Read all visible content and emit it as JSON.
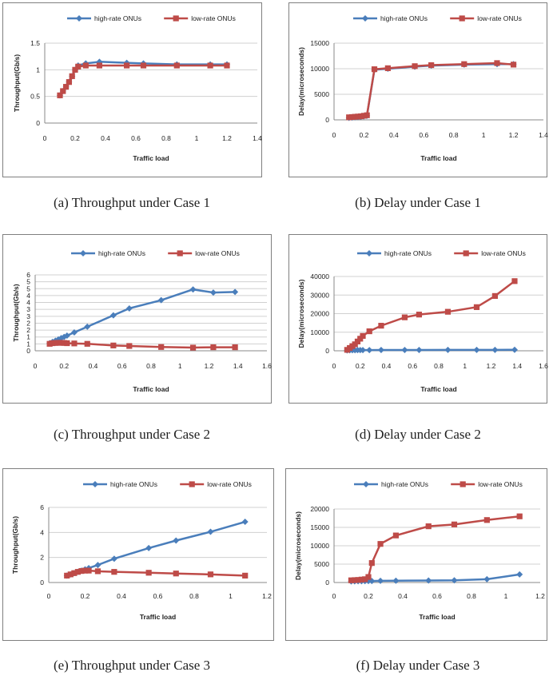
{
  "legend": {
    "series_a": "high-rate ONUs",
    "series_b": "low-rate ONUs"
  },
  "colors": {
    "series_a": "#4a7ebb",
    "series_b": "#be4b48",
    "grid": "#d0d0d0",
    "axis": "#888888"
  },
  "chart_data": [
    {
      "type": "line",
      "caption": "(a) Throughput under Case 1",
      "xlabel": "Traffic load",
      "ylabel": "Throughput(Gb/s)",
      "xlim": [
        0,
        1.4
      ],
      "xticks": [
        "0",
        "0.2",
        "0.4",
        "0.6",
        "0.8",
        "1",
        "1.2",
        "1.4"
      ],
      "ylim": [
        0,
        1.5
      ],
      "yticks": [
        "0",
        "0.5",
        "1",
        "1.5"
      ],
      "series": [
        {
          "name": "high-rate ONUs",
          "marker": "diamond",
          "x": [
            0.1,
            0.12,
            0.14,
            0.16,
            0.18,
            0.2,
            0.22,
            0.27,
            0.36,
            0.54,
            0.65,
            0.87,
            1.09,
            1.2
          ],
          "y": [
            0.52,
            0.6,
            0.68,
            0.77,
            0.88,
            1.0,
            1.08,
            1.12,
            1.15,
            1.13,
            1.12,
            1.1,
            1.1,
            1.1
          ]
        },
        {
          "name": "low-rate ONUs",
          "marker": "square",
          "x": [
            0.1,
            0.12,
            0.14,
            0.16,
            0.18,
            0.2,
            0.22,
            0.27,
            0.36,
            0.54,
            0.65,
            0.87,
            1.09,
            1.2
          ],
          "y": [
            0.52,
            0.6,
            0.68,
            0.77,
            0.88,
            1.0,
            1.06,
            1.08,
            1.08,
            1.08,
            1.08,
            1.08,
            1.08,
            1.08
          ]
        }
      ]
    },
    {
      "type": "line",
      "caption": "(b) Delay under Case 1",
      "xlabel": "Traffic load",
      "ylabel": "Delay(microseconds)",
      "xlim": [
        0,
        1.4
      ],
      "xticks": [
        "0",
        "0.2",
        "0.4",
        "0.6",
        "0.8",
        "1",
        "1.2",
        "1.4"
      ],
      "ylim": [
        0,
        15000
      ],
      "yticks": [
        "0",
        "5000",
        "10000",
        "15000"
      ],
      "series": [
        {
          "name": "high-rate ONUs",
          "marker": "diamond",
          "x": [
            0.1,
            0.12,
            0.14,
            0.16,
            0.18,
            0.2,
            0.22,
            0.27,
            0.36,
            0.54,
            0.65,
            0.87,
            1.09,
            1.2
          ],
          "y": [
            400,
            450,
            500,
            550,
            600,
            700,
            800,
            9800,
            10000,
            10400,
            10600,
            10800,
            10900,
            10900
          ]
        },
        {
          "name": "low-rate ONUs",
          "marker": "square",
          "x": [
            0.1,
            0.12,
            0.14,
            0.16,
            0.18,
            0.2,
            0.22,
            0.27,
            0.36,
            0.54,
            0.65,
            0.87,
            1.09,
            1.2
          ],
          "y": [
            500,
            550,
            600,
            650,
            700,
            800,
            900,
            9900,
            10100,
            10500,
            10700,
            10900,
            11100,
            10800
          ]
        }
      ]
    },
    {
      "type": "line",
      "caption": "(c) Throughput under Case 2",
      "xlabel": "Traffic load",
      "ylabel": "Throughput(Gb/s)",
      "xlim": [
        0,
        1.6
      ],
      "xticks": [
        "0",
        "0.2",
        "0.4",
        "0.6",
        "0.8",
        "1",
        "1.2",
        "1.4",
        "1.6"
      ],
      "ylim": [
        0,
        6
      ],
      "yticks": [
        "0",
        "1",
        "1",
        "2",
        "2",
        "3",
        "3",
        "4",
        "4",
        "5",
        "5",
        "6"
      ],
      "series": [
        {
          "name": "high-rate ONUs",
          "marker": "diamond",
          "x": [
            0.1,
            0.12,
            0.14,
            0.16,
            0.18,
            0.2,
            0.22,
            0.27,
            0.36,
            0.54,
            0.65,
            0.87,
            1.09,
            1.23,
            1.38
          ],
          "y": [
            0.6,
            0.7,
            0.8,
            0.9,
            1.0,
            1.1,
            1.2,
            1.45,
            1.9,
            2.8,
            3.35,
            4.0,
            4.85,
            4.6,
            4.65
          ]
        },
        {
          "name": "low-rate ONUs",
          "marker": "square",
          "x": [
            0.1,
            0.12,
            0.14,
            0.16,
            0.18,
            0.2,
            0.22,
            0.27,
            0.36,
            0.54,
            0.65,
            0.87,
            1.09,
            1.23,
            1.38
          ],
          "y": [
            0.55,
            0.6,
            0.62,
            0.63,
            0.63,
            0.62,
            0.6,
            0.58,
            0.55,
            0.42,
            0.38,
            0.3,
            0.25,
            0.28,
            0.28
          ]
        }
      ]
    },
    {
      "type": "line",
      "caption": "(d) Delay under Case 2",
      "xlabel": "Traffic load",
      "ylabel": "Delay(microseconds)",
      "xlim": [
        0,
        1.6
      ],
      "xticks": [
        "0",
        "0.2",
        "0.4",
        "0.6",
        "0.8",
        "1",
        "1.2",
        "1.4",
        "1.6"
      ],
      "ylim": [
        0,
        40000
      ],
      "yticks": [
        "0",
        "10000",
        "20000",
        "30000",
        "40000"
      ],
      "series": [
        {
          "name": "high-rate ONUs",
          "marker": "diamond",
          "x": [
            0.1,
            0.12,
            0.14,
            0.16,
            0.18,
            0.2,
            0.22,
            0.27,
            0.36,
            0.54,
            0.65,
            0.87,
            1.09,
            1.23,
            1.38
          ],
          "y": [
            200,
            250,
            300,
            300,
            350,
            350,
            400,
            400,
            450,
            450,
            450,
            500,
            500,
            500,
            550
          ]
        },
        {
          "name": "low-rate ONUs",
          "marker": "square",
          "x": [
            0.1,
            0.12,
            0.14,
            0.16,
            0.18,
            0.2,
            0.22,
            0.27,
            0.36,
            0.54,
            0.65,
            0.87,
            1.09,
            1.23,
            1.38
          ],
          "y": [
            500,
            1500,
            2500,
            3500,
            5000,
            6500,
            8000,
            10500,
            13500,
            18000,
            19500,
            21000,
            23500,
            29500,
            37500
          ]
        }
      ]
    },
    {
      "type": "line",
      "caption": "(e) Throughput under Case 3",
      "xlabel": "Traffic load",
      "ylabel": "Throughput(Gb/s)",
      "xlim": [
        0,
        1.2
      ],
      "xticks": [
        "0",
        "0.2",
        "0.4",
        "0.6",
        "0.8",
        "1",
        "1.2"
      ],
      "ylim": [
        0,
        6
      ],
      "yticks": [
        "0",
        "2",
        "4",
        "6"
      ],
      "series": [
        {
          "name": "high-rate ONUs",
          "marker": "diamond",
          "x": [
            0.1,
            0.12,
            0.14,
            0.16,
            0.18,
            0.2,
            0.22,
            0.27,
            0.36,
            0.55,
            0.7,
            0.89,
            1.08
          ],
          "y": [
            0.55,
            0.65,
            0.75,
            0.85,
            0.95,
            1.05,
            1.15,
            1.4,
            1.9,
            2.75,
            3.35,
            4.05,
            4.85
          ]
        },
        {
          "name": "low-rate ONUs",
          "marker": "square",
          "x": [
            0.1,
            0.12,
            0.14,
            0.16,
            0.18,
            0.2,
            0.22,
            0.27,
            0.36,
            0.55,
            0.7,
            0.89,
            1.08
          ],
          "y": [
            0.55,
            0.65,
            0.75,
            0.85,
            0.92,
            0.95,
            0.95,
            0.9,
            0.85,
            0.78,
            0.72,
            0.65,
            0.55
          ]
        }
      ]
    },
    {
      "type": "line",
      "caption": "(f) Delay under Case 3",
      "xlabel": "Traffic load",
      "ylabel": "Delay(microseconds)",
      "xlim": [
        0,
        1.2
      ],
      "xticks": [
        "0",
        "0.2",
        "0.4",
        "0.6",
        "0.8",
        "1",
        "1.2"
      ],
      "ylim": [
        0,
        20000
      ],
      "yticks": [
        "0",
        "5000",
        "10000",
        "15000",
        "20000"
      ],
      "series": [
        {
          "name": "high-rate ONUs",
          "marker": "diamond",
          "x": [
            0.1,
            0.12,
            0.14,
            0.16,
            0.18,
            0.2,
            0.22,
            0.27,
            0.36,
            0.55,
            0.7,
            0.89,
            1.08
          ],
          "y": [
            300,
            320,
            340,
            360,
            380,
            400,
            420,
            450,
            500,
            550,
            600,
            900,
            2200
          ]
        },
        {
          "name": "low-rate ONUs",
          "marker": "square",
          "x": [
            0.1,
            0.12,
            0.14,
            0.16,
            0.18,
            0.2,
            0.22,
            0.27,
            0.36,
            0.55,
            0.7,
            0.89,
            1.08
          ],
          "y": [
            600,
            650,
            700,
            800,
            900,
            1500,
            5300,
            10500,
            12800,
            15300,
            15800,
            17000,
            18000
          ]
        }
      ]
    }
  ]
}
